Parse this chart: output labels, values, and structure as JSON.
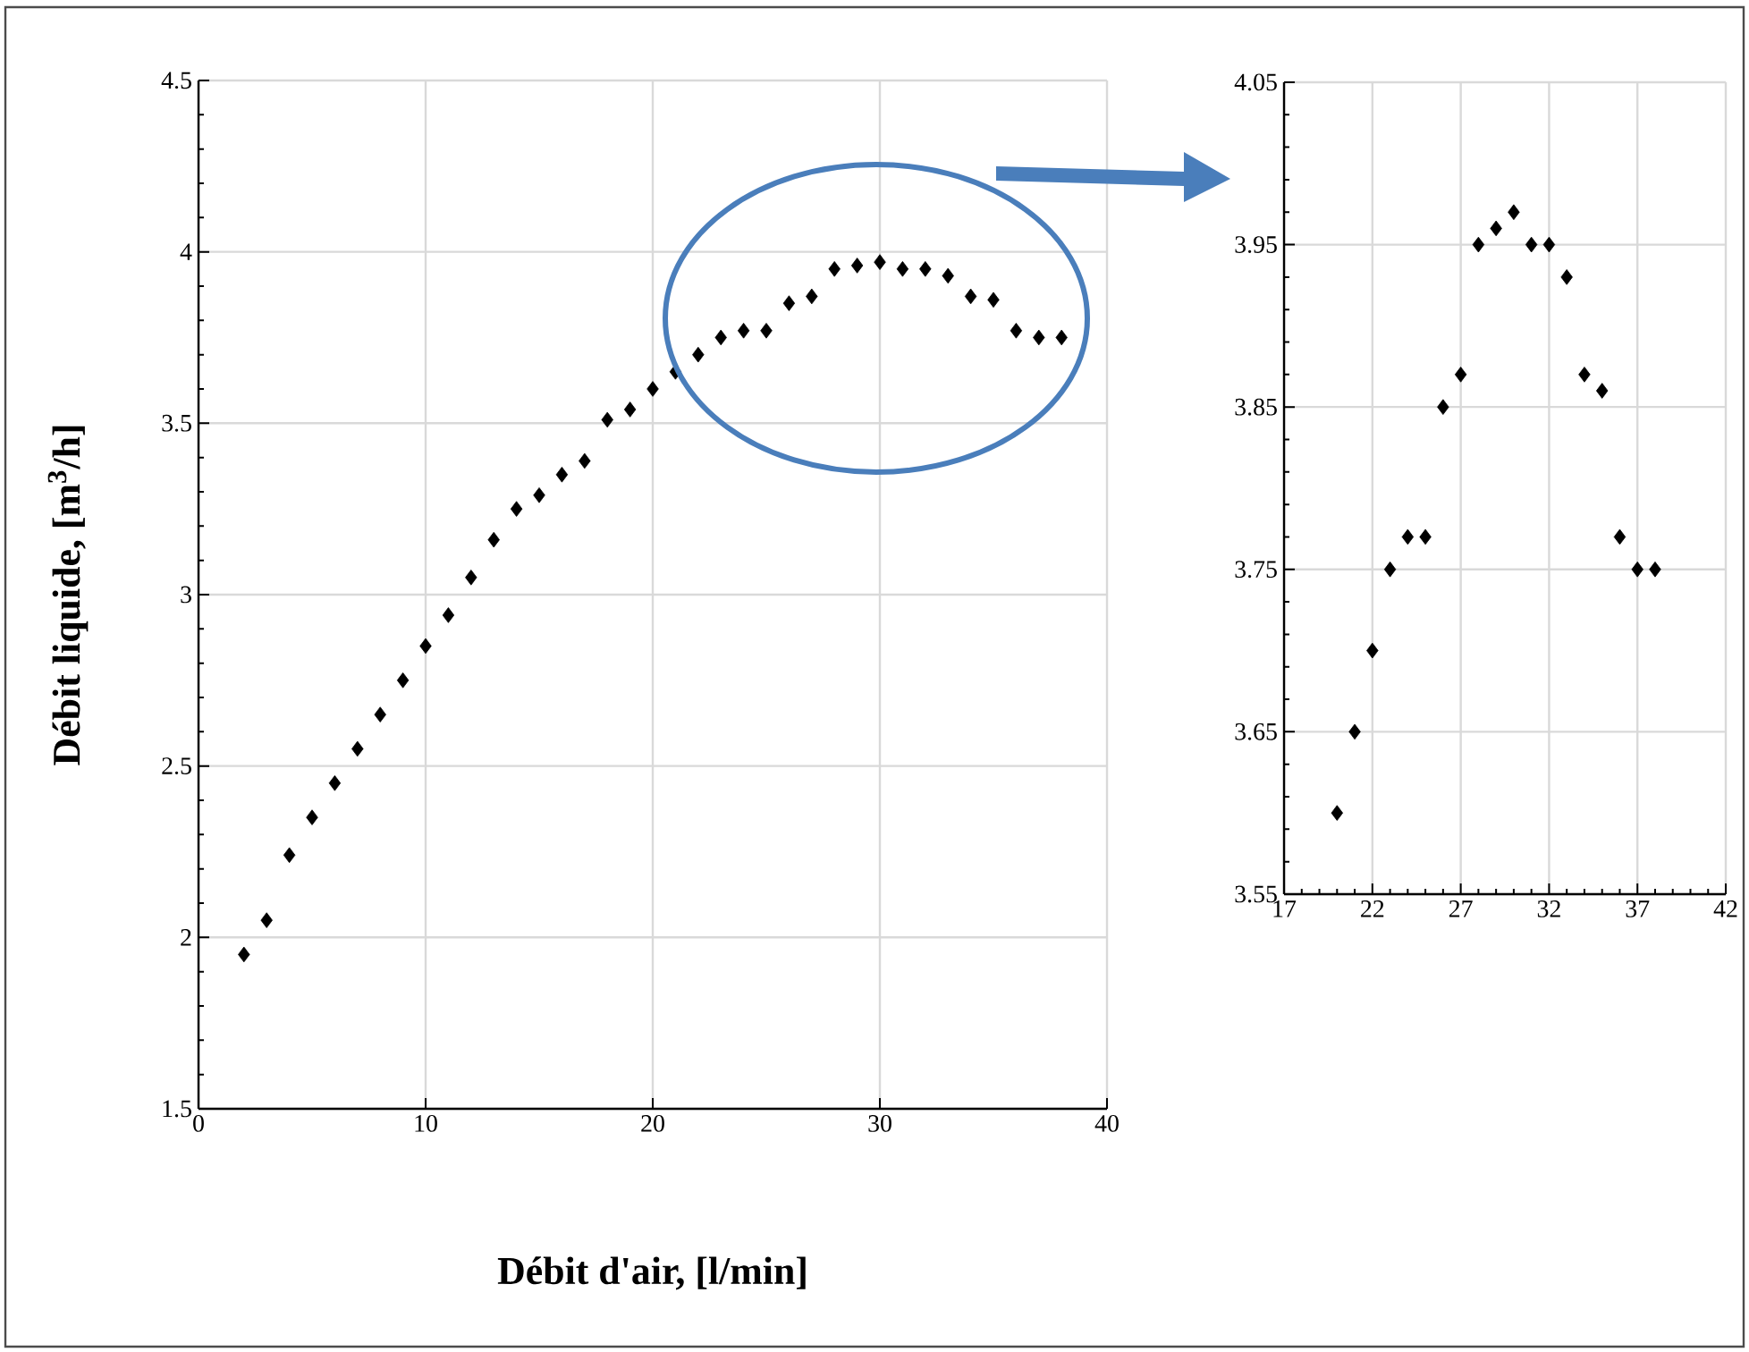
{
  "chart_data": [
    {
      "type": "scatter",
      "xlabel": "Débit d'air, [l/min]",
      "ylabel": "Débit liquide, [m$^{3}$/h]",
      "x": [
        2,
        3,
        4,
        5,
        6,
        7,
        8,
        9,
        10,
        11,
        12,
        13,
        14,
        15,
        16,
        17,
        18,
        19,
        20,
        21,
        22,
        23,
        24,
        25,
        26,
        27,
        28,
        29,
        30,
        31,
        32,
        33,
        34,
        35,
        36,
        37,
        38
      ],
      "values": [
        1.95,
        2.05,
        2.24,
        2.35,
        2.45,
        2.55,
        2.65,
        2.75,
        2.85,
        2.94,
        3.05,
        3.16,
        3.25,
        3.29,
        3.35,
        3.39,
        3.51,
        3.54,
        3.6,
        3.65,
        3.7,
        3.75,
        3.77,
        3.77,
        3.85,
        3.87,
        3.95,
        3.96,
        3.97,
        3.95,
        3.95,
        3.93,
        3.87,
        3.86,
        3.77,
        3.75,
        3.75
      ],
      "color": "#000000",
      "marker": "diamond",
      "grid": true,
      "xlim": [
        0,
        40
      ],
      "xticks": [
        0,
        10,
        20,
        30,
        40
      ],
      "ylim": [
        1.5,
        4.5
      ],
      "yticks": [
        1.5,
        2,
        2.5,
        3,
        3.5,
        4,
        4.5
      ]
    },
    {
      "type": "scatter",
      "x": [
        20,
        21,
        22,
        23,
        24,
        25,
        26,
        27,
        28,
        29,
        30,
        31,
        32,
        33,
        34,
        35,
        36,
        37,
        38
      ],
      "values": [
        3.6,
        3.65,
        3.7,
        3.75,
        3.77,
        3.77,
        3.85,
        3.87,
        3.95,
        3.96,
        3.97,
        3.95,
        3.95,
        3.93,
        3.87,
        3.86,
        3.77,
        3.75,
        3.75
      ],
      "color": "#000000",
      "marker": "diamond",
      "grid": true,
      "xlim": [
        17,
        42
      ],
      "xticks": [
        17,
        22,
        27,
        32,
        37,
        42
      ],
      "ylim": [
        3.55,
        4.05
      ],
      "yticks": [
        3.55,
        3.65,
        3.75,
        3.85,
        3.95,
        4.05
      ]
    }
  ]
}
